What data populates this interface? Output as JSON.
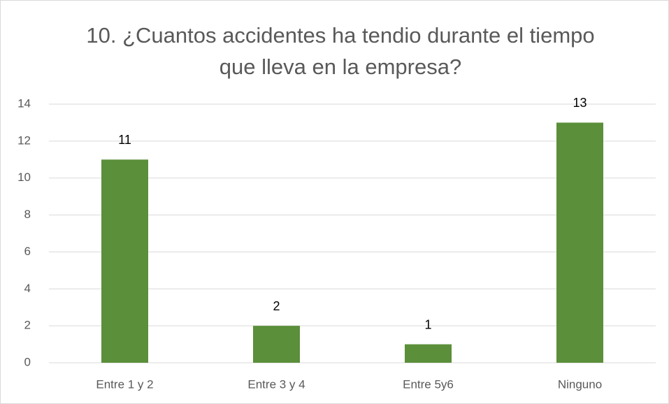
{
  "chart_data": {
    "type": "bar",
    "title": "10. ¿Cuantos accidentes ha tendio durante el tiempo que lleva en la empresa?",
    "categories": [
      "Entre 1 y 2",
      "Entre 3 y 4",
      "Entre 5y6",
      "Ninguno"
    ],
    "values": [
      11,
      2,
      1,
      13
    ],
    "color": "#5b8f3a",
    "ylim": [
      0,
      14
    ],
    "yticks": [
      0,
      2,
      4,
      6,
      8,
      10,
      12,
      14
    ],
    "grid": true
  }
}
